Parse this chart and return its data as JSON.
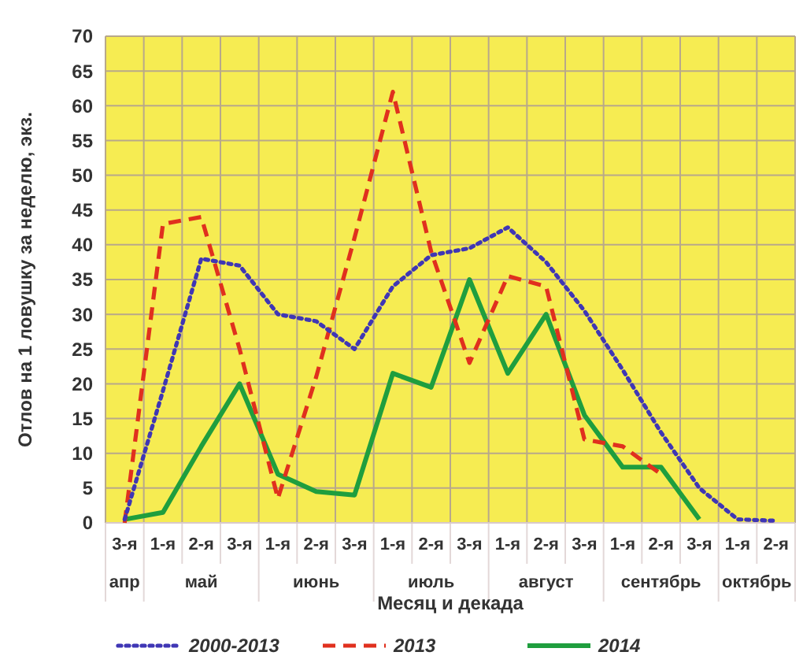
{
  "chart_data": {
    "type": "line",
    "xlabel": "Месяц и декада",
    "ylabel": "Отлов на 1 ловушку за неделю, экз.",
    "categories": [
      "3-я",
      "1-я",
      "2-я",
      "3-я",
      "1-я",
      "2-я",
      "3-я",
      "1-я",
      "2-я",
      "3-я",
      "1-я",
      "2-я",
      "3-я",
      "1-я",
      "2-я",
      "3-я",
      "1-я",
      "2-я"
    ],
    "annotations": [
      "апр",
      "май",
      "июнь",
      "июль",
      "август",
      "сентябрь",
      "октябрь"
    ],
    "ylim": [
      0,
      70
    ],
    "yticks": [
      0,
      5,
      10,
      15,
      20,
      25,
      30,
      35,
      40,
      45,
      50,
      55,
      60,
      65,
      70
    ],
    "grid": true,
    "legend": "bottom",
    "marker": "none",
    "series": [
      {
        "name": "2000-2013",
        "color": "#3f36b5",
        "line_style": "dotted",
        "values": [
          0.5,
          19,
          38,
          37,
          30,
          29,
          25,
          34,
          38.5,
          39.5,
          42.5,
          37.5,
          30.5,
          22,
          13,
          5,
          0.5,
          0.3
        ]
      },
      {
        "name": "2013",
        "color": "#e0301e",
        "line_style": "dashed",
        "values": [
          0,
          43,
          44,
          25,
          3.5,
          21,
          41,
          62,
          39,
          23,
          35.5,
          34,
          12,
          11,
          7,
          null,
          null,
          null
        ]
      },
      {
        "name": "2014",
        "color": "#1f9e3e",
        "line_style": "solid",
        "values": [
          0.5,
          1.5,
          11,
          20,
          7,
          4.5,
          4,
          21.5,
          19.5,
          35,
          21.5,
          30,
          15.5,
          8,
          8,
          0.5,
          null,
          null
        ]
      }
    ]
  }
}
